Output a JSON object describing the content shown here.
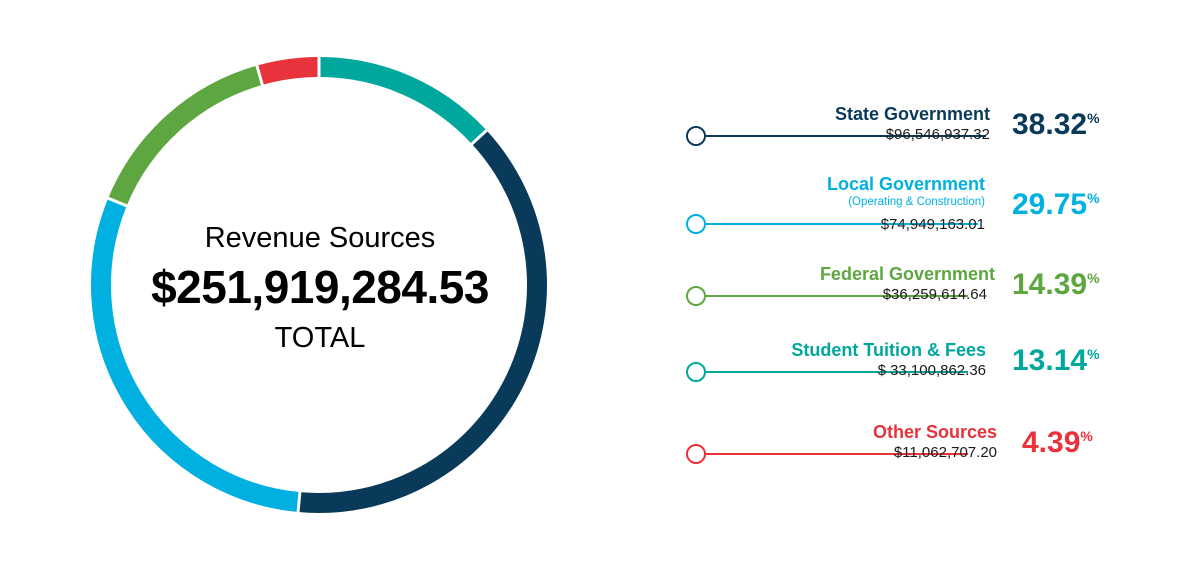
{
  "center": {
    "title": "Revenue Sources",
    "total": "$251,919,284.53",
    "total_label": "TOTAL"
  },
  "legend": [
    {
      "name": "State Government",
      "sub": "",
      "amount": "$96,546,937.32",
      "pct": "38.32",
      "pct_sign": "%",
      "color": "#0a3a5a"
    },
    {
      "name": "Local Government",
      "sub": "(Operating & Construction)",
      "amount": "$74,949,163.01",
      "pct": "29.75",
      "pct_sign": "%",
      "color": "#00b0e0"
    },
    {
      "name": "Federal Government",
      "sub": "",
      "amount": "$36,259,614.64",
      "pct": "14.39",
      "pct_sign": "%",
      "color": "#5ea640"
    },
    {
      "name": "Student Tuition & Fees",
      "sub": "",
      "amount": "$ 33,100,862.36",
      "pct": "13.14",
      "pct_sign": "%",
      "color": "#00a79d"
    },
    {
      "name": "Other Sources",
      "sub": "",
      "amount": "$11,062,707.20",
      "pct": "4.39",
      "pct_sign": "%",
      "color": "#e8323c"
    }
  ],
  "chart_data": {
    "type": "pie",
    "title": "Revenue Sources",
    "categories": [
      "State Government",
      "Local Government",
      "Federal Government",
      "Student Tuition & Fees",
      "Other Sources"
    ],
    "values": [
      96546937.32,
      74949163.01,
      36259614.64,
      33100862.36,
      11062707.2
    ],
    "percentages": [
      38.32,
      29.75,
      14.39,
      13.14,
      4.39
    ],
    "colors": [
      "#0a3a5a",
      "#00b0e0",
      "#5ea640",
      "#00a79d",
      "#e8323c"
    ],
    "total": 251919284.53,
    "donut": true,
    "legend": "right"
  }
}
